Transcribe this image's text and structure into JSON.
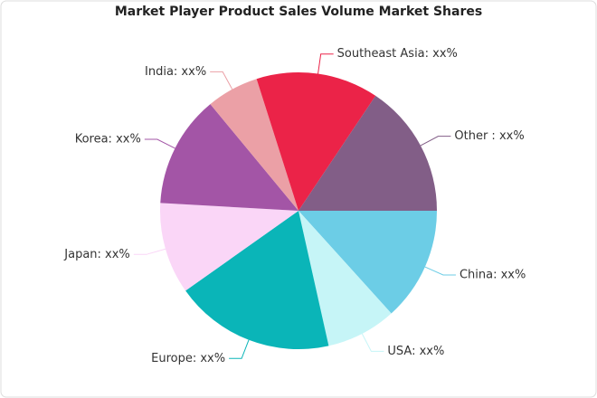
{
  "chart_data": {
    "type": "pie",
    "title": "Market Player Product Sales Volume Market Shares",
    "categories": [
      "China: xx%",
      "USA: xx%",
      "Europe: xx%",
      "Japan: xx%",
      "Korea: xx%",
      "India: xx%",
      "Southeast Asia: xx%",
      "Other : xx%"
    ],
    "values": [
      13.3,
      8.2,
      18.7,
      10.7,
      13.1,
      6.1,
      14.3,
      15.6
    ],
    "colors": [
      "#6ccde6",
      "#c6f5f7",
      "#0ab5b8",
      "#fad6f7",
      "#a355a6",
      "#eba0a6",
      "#eb2348",
      "#825e87"
    ]
  }
}
